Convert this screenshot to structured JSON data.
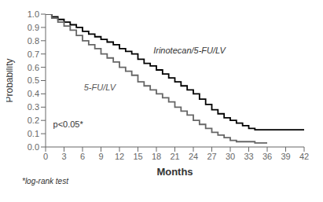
{
  "chart_data": {
    "type": "step",
    "xlabel": "Months",
    "ylabel": "Probability",
    "annotations": [
      "p<0.05*",
      "*log-rank test"
    ],
    "series": [
      {
        "name": "Irinotecan/5-FU/LV",
        "color": "#000000",
        "x": [
          0,
          1,
          2,
          3,
          4,
          5,
          6,
          7,
          8,
          9,
          10,
          11,
          12,
          13,
          14,
          15,
          16,
          17,
          18,
          19,
          20,
          21,
          22,
          23,
          24,
          25,
          26,
          27,
          28,
          29,
          30,
          31,
          32,
          33,
          34,
          35,
          36,
          39,
          42
        ],
        "values": [
          1.0,
          0.98,
          0.96,
          0.94,
          0.92,
          0.9,
          0.87,
          0.85,
          0.83,
          0.81,
          0.79,
          0.77,
          0.74,
          0.72,
          0.7,
          0.66,
          0.63,
          0.61,
          0.58,
          0.55,
          0.52,
          0.49,
          0.46,
          0.43,
          0.4,
          0.36,
          0.32,
          0.28,
          0.25,
          0.22,
          0.2,
          0.18,
          0.16,
          0.14,
          0.13,
          0.13,
          0.13,
          0.13,
          0.13
        ]
      },
      {
        "name": "5-FU/LV",
        "color": "#666666",
        "x": [
          0,
          1,
          2,
          3,
          4,
          5,
          6,
          7,
          8,
          9,
          10,
          11,
          12,
          13,
          14,
          15,
          16,
          17,
          18,
          19,
          20,
          21,
          22,
          23,
          24,
          25,
          26,
          27,
          28,
          29,
          30,
          31,
          32,
          33,
          34,
          35,
          36
        ],
        "values": [
          1.0,
          0.97,
          0.94,
          0.91,
          0.88,
          0.84,
          0.8,
          0.77,
          0.74,
          0.7,
          0.67,
          0.64,
          0.6,
          0.57,
          0.54,
          0.49,
          0.46,
          0.43,
          0.4,
          0.37,
          0.34,
          0.3,
          0.27,
          0.24,
          0.2,
          0.17,
          0.14,
          0.11,
          0.09,
          0.07,
          0.05,
          0.04,
          0.04,
          0.04,
          0.03,
          0.03,
          0.03
        ]
      }
    ],
    "xlim": [
      0,
      42
    ],
    "ylim": [
      0.0,
      1.0
    ],
    "xticks": [
      0,
      3,
      6,
      9,
      12,
      15,
      18,
      21,
      24,
      27,
      30,
      33,
      36,
      39,
      42
    ],
    "yticks": [
      {
        "value": 0,
        "label": "0.0"
      },
      {
        "value": 0.1,
        "label": "0.1"
      },
      {
        "value": 0.2,
        "label": "0.2"
      },
      {
        "value": 0.3,
        "label": "0.3"
      },
      {
        "value": 0.4,
        "label": "0.4"
      },
      {
        "value": 0.5,
        "label": "0.5"
      },
      {
        "value": 0.6,
        "label": "0.6"
      },
      {
        "value": 0.7,
        "label": "0.7"
      },
      {
        "value": 0.8,
        "label": "0.8"
      },
      {
        "value": 0.9,
        "label": "0.9"
      },
      {
        "value": 1,
        "label": "1.0"
      }
    ]
  }
}
